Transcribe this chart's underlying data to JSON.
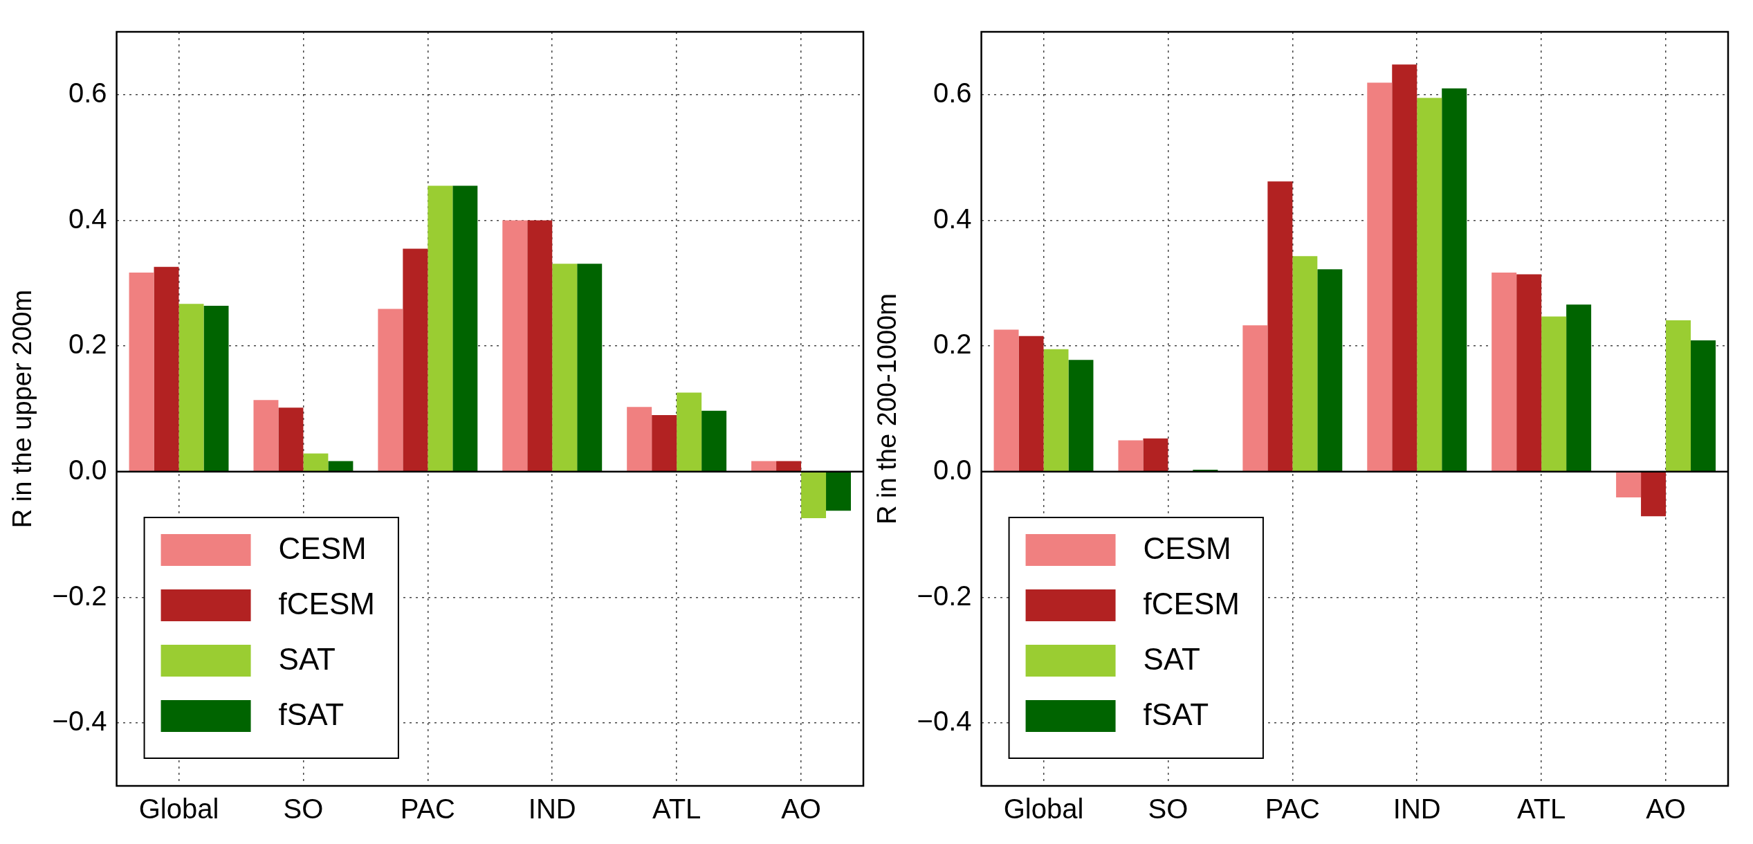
{
  "chart_data": [
    {
      "type": "bar",
      "ylabel": "R in the upper 200m",
      "categories": [
        "Global",
        "SO",
        "PAC",
        "IND",
        "ATL",
        "AO"
      ],
      "series": [
        {
          "name": "CESM",
          "color": "#f08080",
          "values": [
            0.317,
            0.114,
            0.259,
            0.4,
            0.103,
            0.017
          ]
        },
        {
          "name": "fCESM",
          "color": "#b22222",
          "values": [
            0.326,
            0.102,
            0.355,
            0.4,
            0.09,
            0.017
          ]
        },
        {
          "name": "SAT",
          "color": "#9acd32",
          "values": [
            0.267,
            0.029,
            0.455,
            0.331,
            0.126,
            -0.074
          ]
        },
        {
          "name": "fSAT",
          "color": "#006400",
          "values": [
            0.264,
            0.017,
            0.455,
            0.331,
            0.097,
            -0.062
          ]
        }
      ],
      "ylim": [
        -0.5,
        0.7
      ],
      "yticks": [
        {
          "value": -0.4,
          "label": "−0.4"
        },
        {
          "value": -0.2,
          "label": "−0.2"
        },
        {
          "value": 0,
          "label": "0.0"
        },
        {
          "value": 0.2,
          "label": "0.2"
        },
        {
          "value": 0.4,
          "label": "0.4"
        },
        {
          "value": 0.6,
          "label": "0.6"
        }
      ],
      "ref_lines": [
        {
          "axis": "y",
          "value": 0,
          "color": "#000000"
        }
      ],
      "grid": true,
      "legend": "bottom left"
    },
    {
      "type": "bar",
      "ylabel": "R in the 200-1000m",
      "categories": [
        "Global",
        "SO",
        "PAC",
        "IND",
        "ATL",
        "AO"
      ],
      "series": [
        {
          "name": "CESM",
          "color": "#f08080",
          "values": [
            0.226,
            0.05,
            0.233,
            0.619,
            0.317,
            -0.041
          ]
        },
        {
          "name": "fCESM",
          "color": "#b22222",
          "values": [
            0.216,
            0.053,
            0.462,
            0.648,
            0.314,
            -0.071
          ]
        },
        {
          "name": "SAT",
          "color": "#9acd32",
          "values": [
            0.195,
            null,
            0.343,
            0.595,
            0.247,
            0.241
          ]
        },
        {
          "name": "fSAT",
          "color": "#006400",
          "values": [
            0.178,
            0.003,
            0.322,
            0.61,
            0.266,
            0.209
          ]
        }
      ],
      "ylim": [
        -0.5,
        0.7
      ],
      "yticks": [
        {
          "value": -0.4,
          "label": "−0.4"
        },
        {
          "value": -0.2,
          "label": "−0.2"
        },
        {
          "value": 0,
          "label": "0.0"
        },
        {
          "value": 0.2,
          "label": "0.2"
        },
        {
          "value": 0.4,
          "label": "0.4"
        },
        {
          "value": 0.6,
          "label": "0.6"
        }
      ],
      "ref_lines": [
        {
          "axis": "y",
          "value": 0,
          "color": "#000000"
        }
      ],
      "grid": true,
      "legend": "bottom left"
    }
  ]
}
